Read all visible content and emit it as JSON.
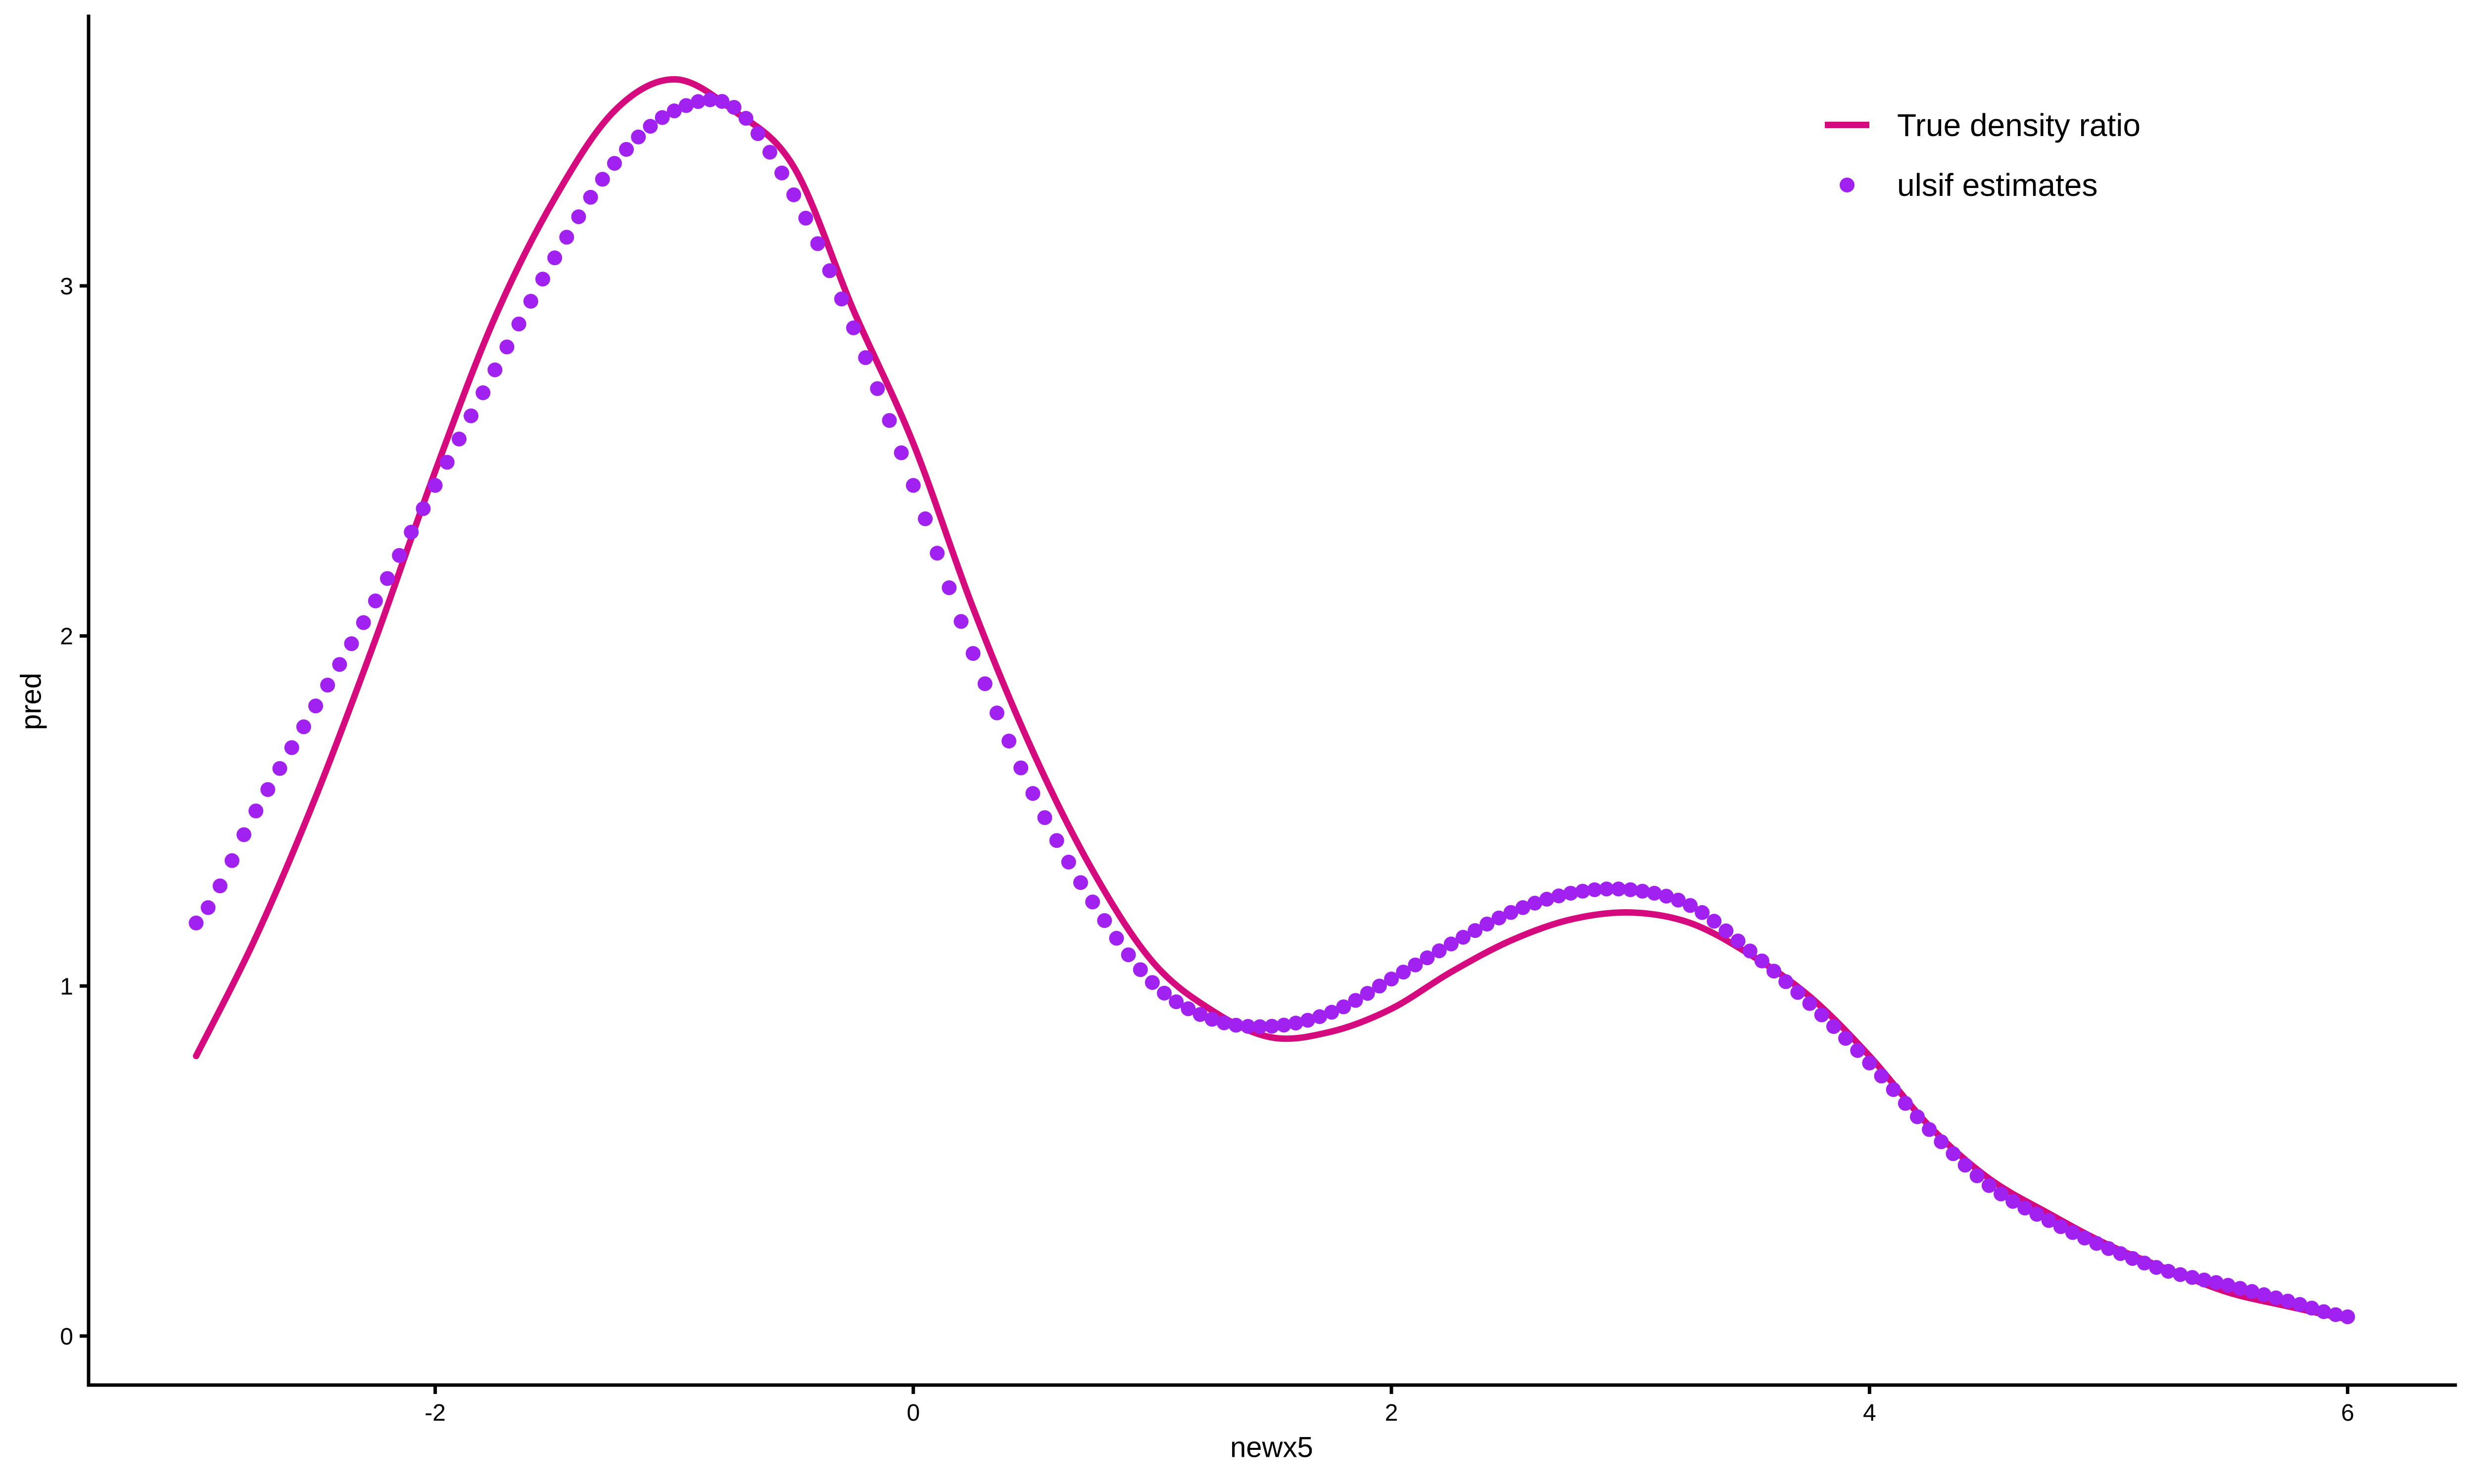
{
  "figure": {
    "background": "#ffffff",
    "axis_color": "#000000",
    "text_color": "#000000"
  },
  "chart_data": {
    "type": "line+scatter",
    "title": "",
    "xlabel": "newx5",
    "ylabel": "pred",
    "x_ticks": [
      -2,
      0,
      2,
      4,
      6
    ],
    "y_ticks": [
      0,
      1,
      2,
      3
    ],
    "x_range": [
      -3.45,
      6.45
    ],
    "y_range": [
      -0.14,
      3.77
    ],
    "grid": false,
    "legend_position": "top-right",
    "series": [
      {
        "name": "True density ratio",
        "type": "line",
        "color": "#D40A7E",
        "stroke_width": 13,
        "points": [
          [
            -3.0,
            0.8
          ],
          [
            -2.75,
            1.14
          ],
          [
            -2.5,
            1.54
          ],
          [
            -2.25,
            1.99
          ],
          [
            -2.0,
            2.47
          ],
          [
            -1.75,
            2.91
          ],
          [
            -1.5,
            3.25
          ],
          [
            -1.25,
            3.5
          ],
          [
            -1.0,
            3.59
          ],
          [
            -0.75,
            3.5
          ],
          [
            -0.5,
            3.34
          ],
          [
            -0.25,
            2.93
          ],
          [
            0.0,
            2.55
          ],
          [
            0.25,
            2.08
          ],
          [
            0.5,
            1.67
          ],
          [
            0.75,
            1.33
          ],
          [
            1.0,
            1.07
          ],
          [
            1.25,
            0.93
          ],
          [
            1.5,
            0.853
          ],
          [
            1.75,
            0.87
          ],
          [
            2.0,
            0.935
          ],
          [
            2.25,
            1.04
          ],
          [
            2.5,
            1.13
          ],
          [
            2.75,
            1.19
          ],
          [
            3.0,
            1.21
          ],
          [
            3.25,
            1.18
          ],
          [
            3.5,
            1.09
          ],
          [
            3.75,
            0.97
          ],
          [
            4.0,
            0.8
          ],
          [
            4.25,
            0.6
          ],
          [
            4.5,
            0.45
          ],
          [
            4.75,
            0.35
          ],
          [
            5.0,
            0.26
          ],
          [
            5.25,
            0.19
          ],
          [
            5.5,
            0.125
          ],
          [
            5.75,
            0.085
          ],
          [
            6.0,
            0.048
          ]
        ]
      },
      {
        "name": "ulsif estimates",
        "type": "scatter",
        "color": "#A122F0",
        "dot_radius": 15,
        "x_step": 0.05,
        "control_points": [
          [
            -3.0,
            1.18
          ],
          [
            -2.75,
            1.5
          ],
          [
            -2.5,
            1.8
          ],
          [
            -2.25,
            2.1
          ],
          [
            -2.0,
            2.43
          ],
          [
            -1.75,
            2.76
          ],
          [
            -1.5,
            3.08
          ],
          [
            -1.25,
            3.35
          ],
          [
            -1.0,
            3.5
          ],
          [
            -0.75,
            3.51
          ],
          [
            -0.5,
            3.26
          ],
          [
            -0.25,
            2.88
          ],
          [
            0.0,
            2.43
          ],
          [
            0.25,
            1.95
          ],
          [
            0.5,
            1.55
          ],
          [
            0.75,
            1.24
          ],
          [
            1.0,
            1.01
          ],
          [
            1.25,
            0.905
          ],
          [
            1.5,
            0.885
          ],
          [
            1.75,
            0.925
          ],
          [
            2.0,
            1.02
          ],
          [
            2.25,
            1.12
          ],
          [
            2.5,
            1.21
          ],
          [
            2.75,
            1.265
          ],
          [
            3.0,
            1.275
          ],
          [
            3.25,
            1.23
          ],
          [
            3.5,
            1.1
          ],
          [
            3.75,
            0.95
          ],
          [
            4.0,
            0.78
          ],
          [
            4.25,
            0.59
          ],
          [
            4.5,
            0.43
          ],
          [
            4.75,
            0.33
          ],
          [
            5.0,
            0.25
          ],
          [
            5.25,
            0.185
          ],
          [
            5.5,
            0.145
          ],
          [
            5.75,
            0.1
          ],
          [
            6.0,
            0.055
          ]
        ]
      }
    ]
  }
}
